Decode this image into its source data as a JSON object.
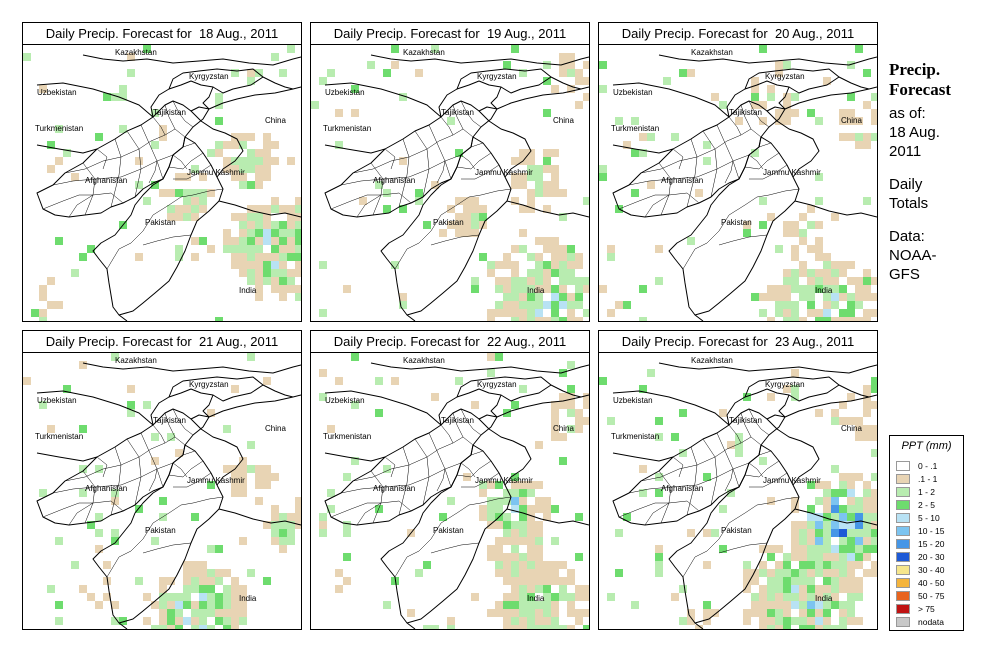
{
  "panels": [
    {
      "title": "Daily Precip. Forecast for  18 Aug., 2011",
      "date": "18 Aug., 2011"
    },
    {
      "title": "Daily Precip. Forecast for  19 Aug., 2011",
      "date": "19 Aug., 2011"
    },
    {
      "title": "Daily Precip. Forecast for  20 Aug., 2011",
      "date": "20 Aug., 2011"
    },
    {
      "title": "Daily Precip. Forecast for  21 Aug., 2011",
      "date": "21 Aug., 2011"
    },
    {
      "title": "Daily Precip. Forecast for  22 Aug., 2011",
      "date": "22 Aug., 2011"
    },
    {
      "title": "Daily Precip. Forecast for  23 Aug., 2011",
      "date": "23 Aug., 2011"
    }
  ],
  "map_labels": {
    "uzbekistan": "Uzbekistan",
    "kazakhstan": "Kazakhstan",
    "kyrgyzstan": "Kyrgyzstan",
    "tajikistan": "Tajikistan",
    "turkmenistan": "Turkmenistan",
    "china": "China",
    "afghanistan": "Afghanistan",
    "jammu_kashmir": "Jammu Kashmir",
    "pakistan": "Pakistan",
    "india": "India"
  },
  "side": {
    "title_line1": "Precip.",
    "title_line2": "Forecast",
    "asof": "as of:\n18 Aug.\n2011",
    "daily": "Daily\nTotals",
    "data": "Data:\nNOAA-\nGFS"
  },
  "legend": {
    "title": "PPT (mm)",
    "items": [
      {
        "label": "0 - .1",
        "color": "#ffffff"
      },
      {
        "label": ".1 - 1",
        "color": "#e8d4b4"
      },
      {
        "label": "1 - 2",
        "color": "#b8ecb0"
      },
      {
        "label": "2 - 5",
        "color": "#6edc6e"
      },
      {
        "label": "5 - 10",
        "color": "#b8e2f4"
      },
      {
        "label": "10 - 15",
        "color": "#7cc4f0"
      },
      {
        "label": "15 - 20",
        "color": "#4696e6"
      },
      {
        "label": "20 - 30",
        "color": "#1e5ad6"
      },
      {
        "label": "30 - 40",
        "color": "#f6e68c"
      },
      {
        "label": "40 - 50",
        "color": "#f4b43c"
      },
      {
        "label": "50 - 75",
        "color": "#e8641e"
      },
      {
        "label": "> 75",
        "color": "#c01414"
      },
      {
        "label": "nodata",
        "color": "#c8c8c8"
      }
    ]
  }
}
